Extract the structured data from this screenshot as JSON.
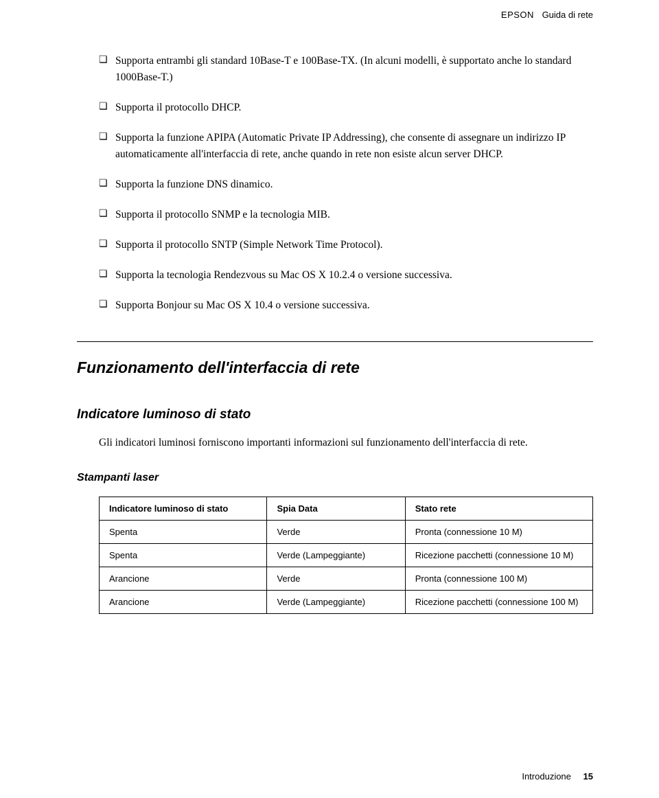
{
  "header": {
    "brand": "EPSON",
    "title": "Guida di rete"
  },
  "bullets": [
    "Supporta entrambi gli standard 10Base-T e 100Base-TX. (In alcuni modelli, è supportato anche lo standard 1000Base-T.)",
    "Supporta il protocollo DHCP.",
    "Supporta la funzione APIPA (Automatic Private IP Addressing), che consente di assegnare un indirizzo IP automaticamente all'interfaccia di rete, anche quando in rete non esiste alcun server DHCP.",
    "Supporta la funzione DNS dinamico.",
    "Supporta il protocollo SNMP e la tecnologia MIB.",
    "Supporta il protocollo SNTP (Simple Network Time Protocol).",
    "Supporta la tecnologia Rendezvous su Mac OS X 10.2.4 o versione successiva.",
    "Supporta Bonjour su Mac OS X 10.4 o versione successiva."
  ],
  "section": {
    "title": "Funzionamento dell'interfaccia di rete"
  },
  "subsection": {
    "title": "Indicatore luminoso di stato",
    "body": "Gli indicatori luminosi forniscono importanti informazioni sul funzionamento dell'interfaccia di rete."
  },
  "subsub": {
    "title": "Stampanti laser"
  },
  "table": {
    "columns": [
      "Indicatore luminoso di stato",
      "Spia Data",
      "Stato rete"
    ],
    "rows": [
      [
        "Spenta",
        "Verde",
        "Pronta (connessione 10 M)"
      ],
      [
        "Spenta",
        "Verde (Lampeggiante)",
        "Ricezione pacchetti (connessione 10 M)"
      ],
      [
        "Arancione",
        "Verde",
        "Pronta (connessione 100 M)"
      ],
      [
        "Arancione",
        "Verde (Lampeggiante)",
        "Ricezione pacchetti (connessione 100 M)"
      ]
    ],
    "col_widths": [
      "34%",
      "28%",
      "38%"
    ]
  },
  "footer": {
    "section_name": "Introduzione",
    "page_num": "15"
  },
  "colors": {
    "text": "#000000",
    "background": "#ffffff",
    "border": "#000000"
  }
}
